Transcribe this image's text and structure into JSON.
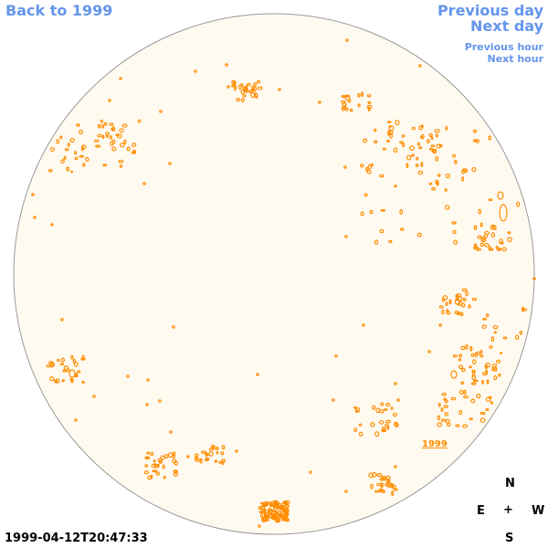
{
  "nav": {
    "back_label": "Back to 1999",
    "prev_day_label": "Previous day",
    "next_day_label": "Next day",
    "prev_hour_label": "Previous hour",
    "next_hour_label": "Next hour"
  },
  "solar_disk": {
    "disk_color": "#fffaf0",
    "rim_color": "#999999",
    "contour_color": "#ff8c00",
    "region_label": "1999"
  },
  "compass": {
    "north": "N",
    "south": "S",
    "east": "E",
    "west": "W",
    "center": "+"
  },
  "timestamp": "1999-04-12T20:47:33",
  "colors": {
    "link": "#6495ed",
    "text": "#000000"
  }
}
